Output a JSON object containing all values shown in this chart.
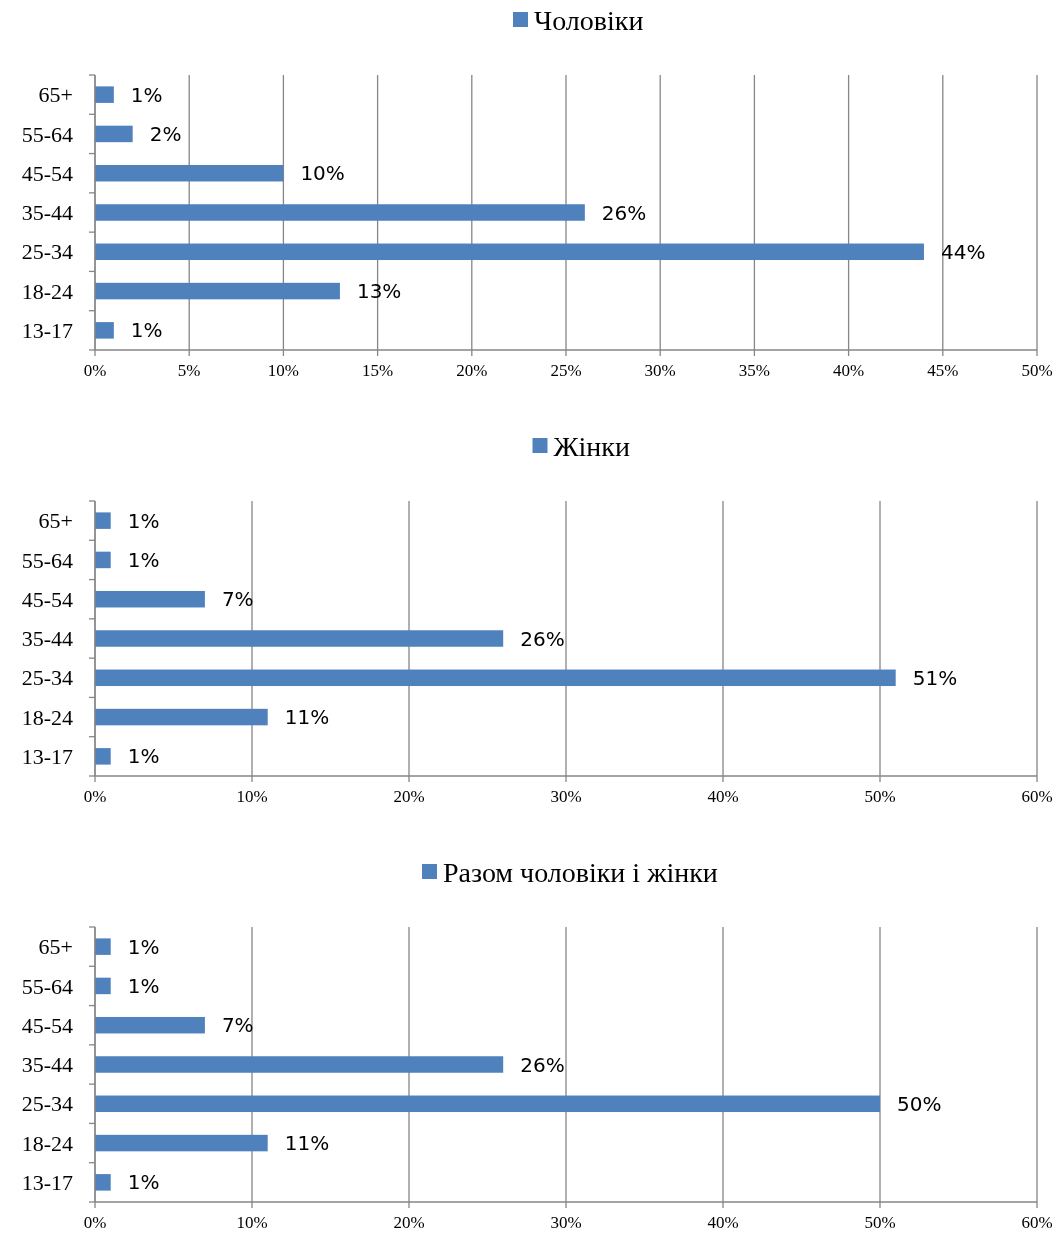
{
  "chart_data": [
    {
      "type": "bar",
      "orientation": "horizontal",
      "categories": [
        "65+",
        "55-64",
        "45-54",
        "35-44",
        "25-34",
        "18-24",
        "13-17"
      ],
      "series": [
        {
          "name": "Чоловіки",
          "color": "#4f81bd",
          "values": [
            1,
            2,
            10,
            26,
            44,
            13,
            1
          ],
          "value_labels": [
            "1%",
            "2%",
            "10%",
            "26%",
            "44%",
            "13%",
            "1%"
          ]
        }
      ],
      "xlim": [
        0,
        50
      ],
      "xticks": [
        {
          "value": 0,
          "label": "0%"
        },
        {
          "value": 5,
          "label": "5%"
        },
        {
          "value": 10,
          "label": "10%"
        },
        {
          "value": 15,
          "label": "15%"
        },
        {
          "value": 20,
          "label": "20%"
        },
        {
          "value": 25,
          "label": "25%"
        },
        {
          "value": 30,
          "label": "30%"
        },
        {
          "value": 35,
          "label": "35%"
        },
        {
          "value": 40,
          "label": "40%"
        },
        {
          "value": 45,
          "label": "45%"
        },
        {
          "value": 50,
          "label": "50%"
        }
      ],
      "grid": "x",
      "legend": "top"
    },
    {
      "type": "bar",
      "orientation": "horizontal",
      "categories": [
        "65+",
        "55-64",
        "45-54",
        "35-44",
        "25-34",
        "18-24",
        "13-17"
      ],
      "series": [
        {
          "name": "Жінки",
          "color": "#4f81bd",
          "values": [
            1,
            1,
            7,
            26,
            51,
            11,
            1
          ],
          "value_labels": [
            "1%",
            "1%",
            "7%",
            "26%",
            "51%",
            "11%",
            "1%"
          ]
        }
      ],
      "xlim": [
        0,
        60
      ],
      "xticks": [
        {
          "value": 0,
          "label": "0%"
        },
        {
          "value": 10,
          "label": "10%"
        },
        {
          "value": 20,
          "label": "20%"
        },
        {
          "value": 30,
          "label": "30%"
        },
        {
          "value": 40,
          "label": "40%"
        },
        {
          "value": 50,
          "label": "50%"
        },
        {
          "value": 60,
          "label": "60%"
        }
      ],
      "grid": "x",
      "legend": "top"
    },
    {
      "type": "bar",
      "orientation": "horizontal",
      "categories": [
        "65+",
        "55-64",
        "45-54",
        "35-44",
        "25-34",
        "18-24",
        "13-17"
      ],
      "series": [
        {
          "name": "Разом чоловіки і жінки",
          "color": "#4f81bd",
          "values": [
            1,
            1,
            7,
            26,
            50,
            11,
            1
          ],
          "value_labels": [
            "1%",
            "1%",
            "7%",
            "26%",
            "50%",
            "11%",
            "1%"
          ]
        }
      ],
      "xlim": [
        0,
        60
      ],
      "xticks": [
        {
          "value": 0,
          "label": "0%"
        },
        {
          "value": 10,
          "label": "10%"
        },
        {
          "value": 20,
          "label": "20%"
        },
        {
          "value": 30,
          "label": "30%"
        },
        {
          "value": 40,
          "label": "40%"
        },
        {
          "value": 50,
          "label": "50%"
        },
        {
          "value": 60,
          "label": "60%"
        }
      ],
      "grid": "x",
      "legend": "top"
    }
  ]
}
